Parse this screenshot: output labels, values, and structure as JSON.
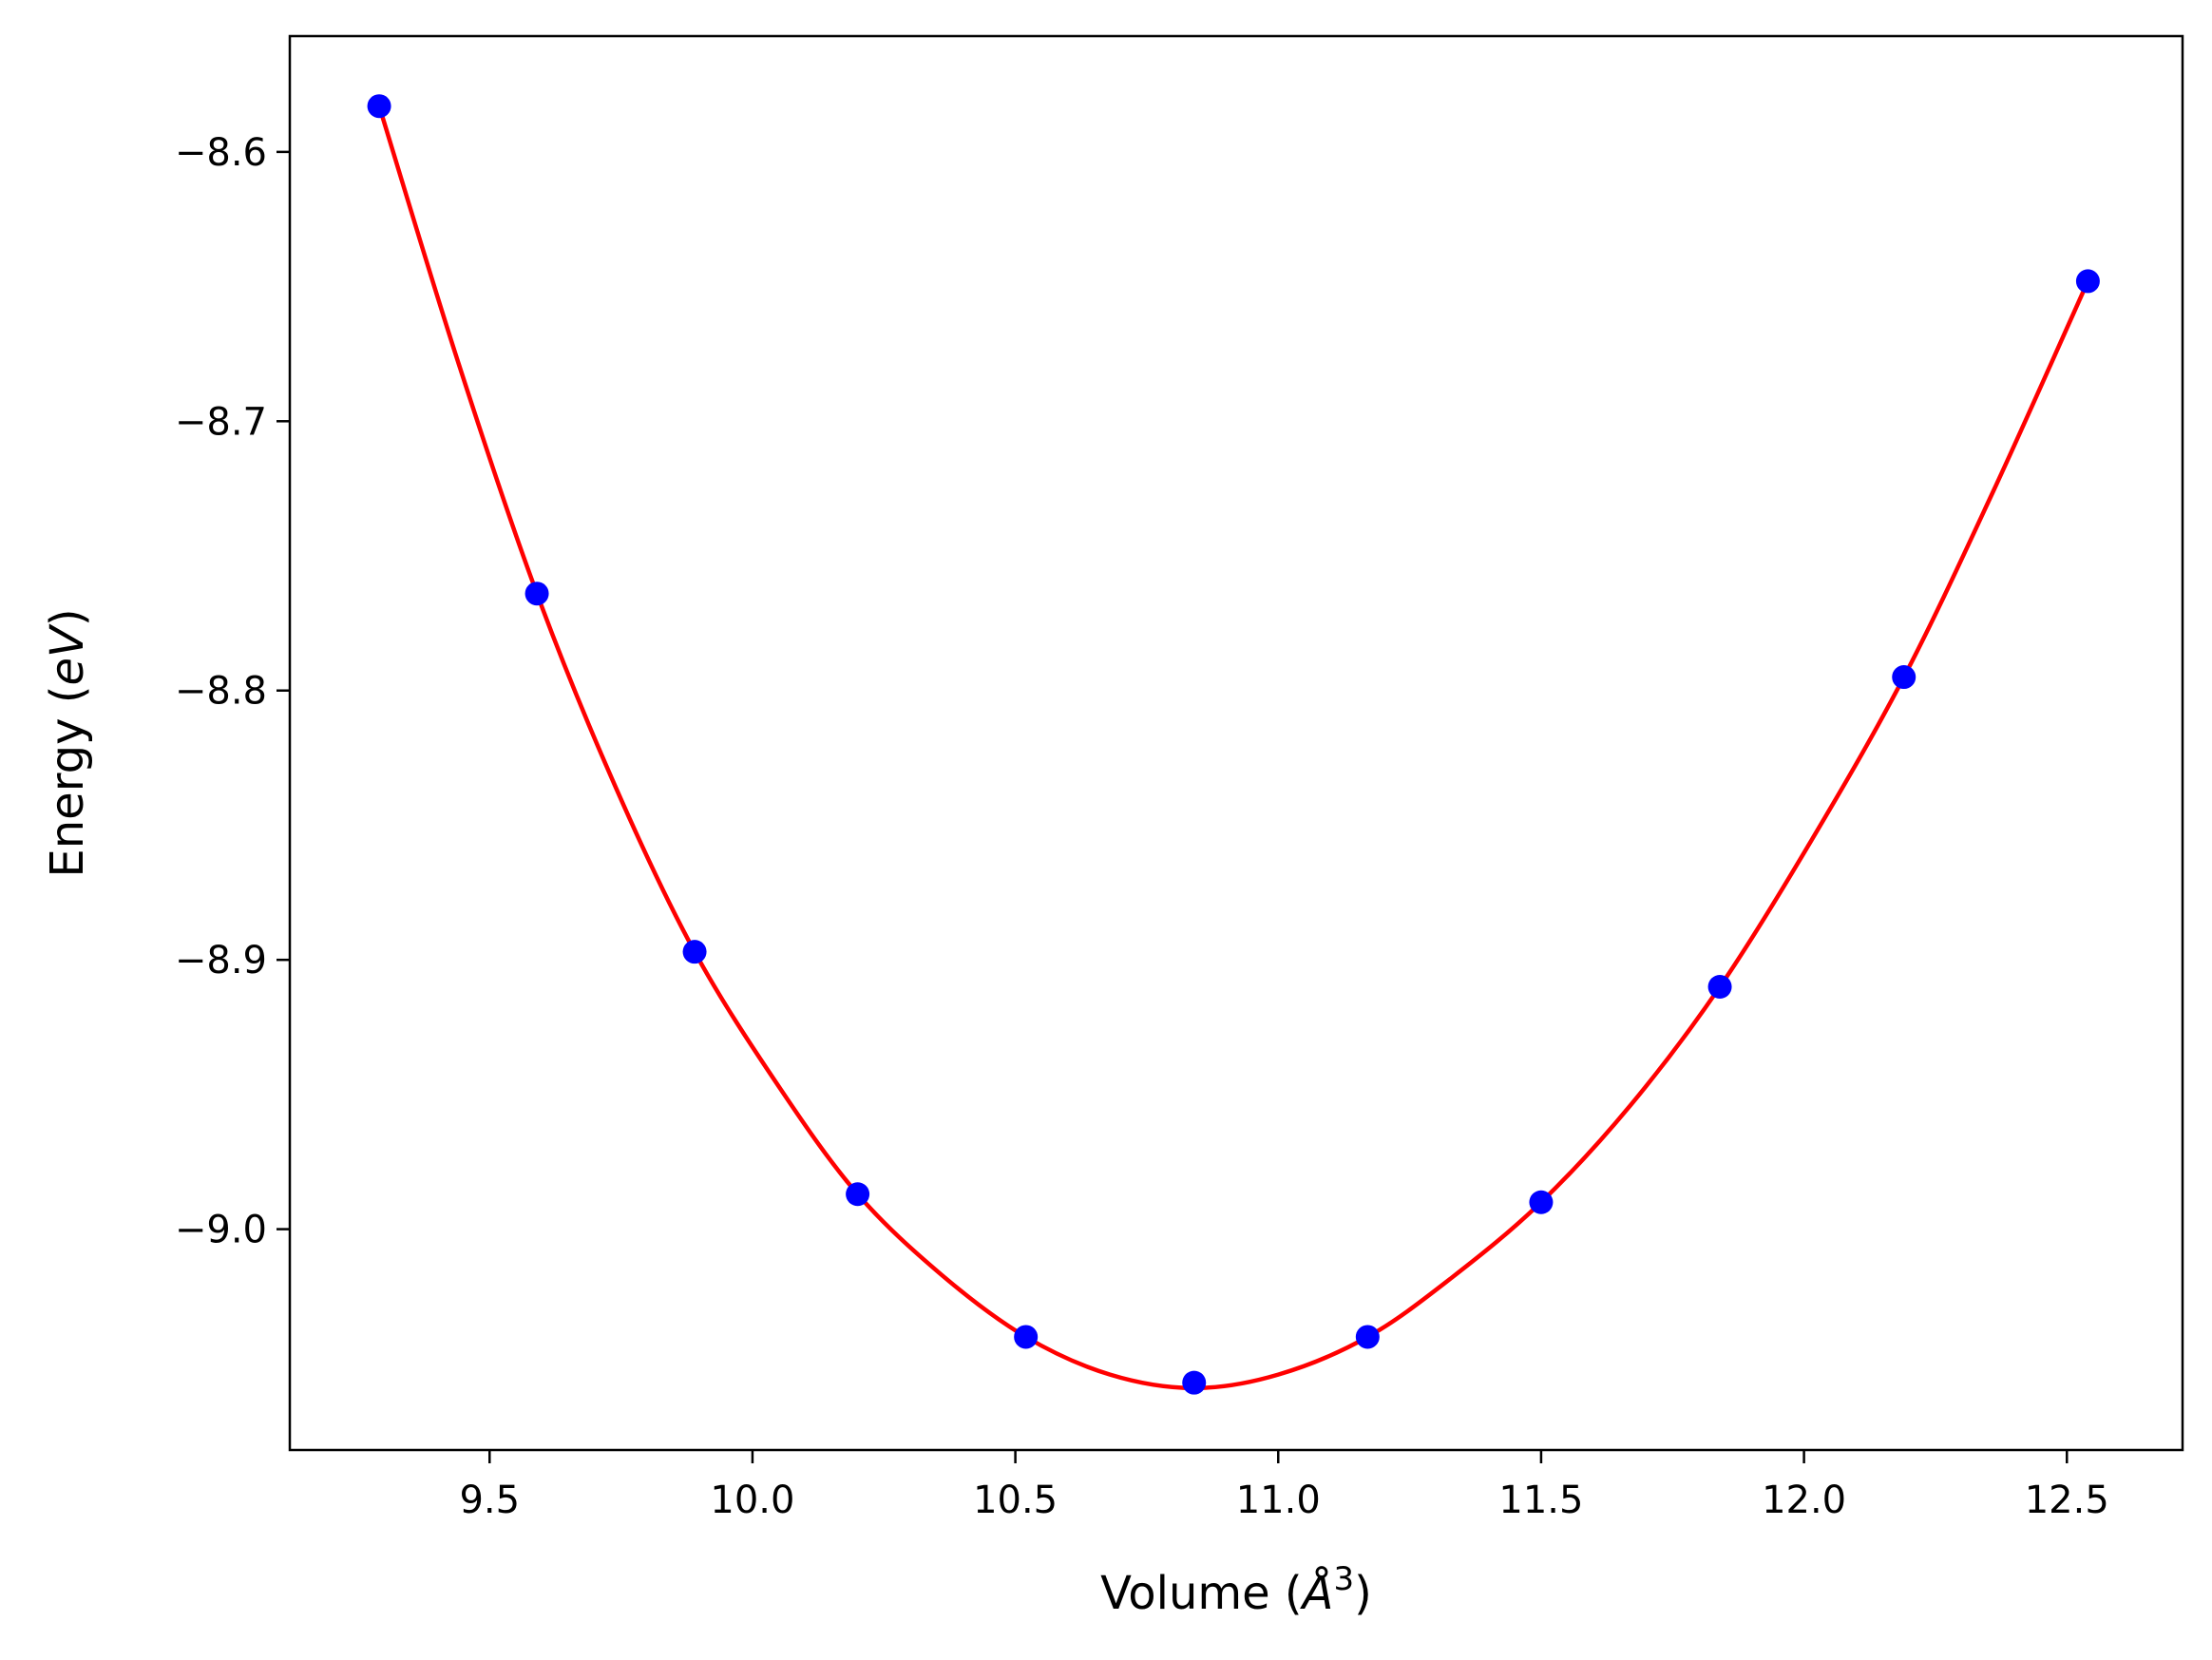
{
  "chart_data": {
    "type": "scatter",
    "title": "",
    "xlabel": "Volume (",
    "xlabel_italic": "Å",
    "xlabel_sup": "3",
    "xlabel_close": ")",
    "ylabel": "Energy (",
    "ylabel_italic": "eV",
    "ylabel_close": ")",
    "xlim": [
      9.12,
      12.72
    ],
    "ylim": [
      -9.082,
      -8.557
    ],
    "xticks": [
      9.5,
      10.0,
      10.5,
      11.0,
      11.5,
      12.0,
      12.5
    ],
    "xtick_labels": [
      "9.5",
      "10.0",
      "10.5",
      "11.0",
      "11.5",
      "12.0",
      "12.5"
    ],
    "yticks": [
      -8.6,
      -8.7,
      -8.8,
      -8.9,
      -9.0
    ],
    "ytick_labels": [
      "−8.6",
      "−8.7",
      "−8.8",
      "−8.9",
      "−9.0"
    ],
    "grid": false,
    "legend": "none",
    "series": [
      {
        "kind": "points",
        "color": "#0000ff",
        "x": [
          9.29,
          9.59,
          9.89,
          10.2,
          10.52,
          10.84,
          11.17,
          11.5,
          11.84,
          12.19,
          12.54
        ],
        "y": [
          -8.583,
          -8.764,
          -8.897,
          -8.987,
          -9.04,
          -9.057,
          -9.04,
          -8.99,
          -8.91,
          -8.795,
          -8.648
        ]
      },
      {
        "kind": "fit-line",
        "color": "#ff0000",
        "x": [
          9.29,
          9.44,
          9.59,
          9.74,
          9.89,
          10.05,
          10.2,
          10.36,
          10.52,
          10.68,
          10.84,
          11.0,
          11.17,
          11.33,
          11.5,
          11.67,
          11.84,
          12.01,
          12.19,
          12.36,
          12.54
        ],
        "y": [
          -8.583,
          -8.678,
          -8.764,
          -8.836,
          -8.897,
          -8.947,
          -8.987,
          -9.017,
          -9.04,
          -9.054,
          -9.059,
          -9.054,
          -9.04,
          -9.018,
          -8.99,
          -8.954,
          -8.91,
          -8.857,
          -8.795,
          -8.726,
          -8.648
        ]
      }
    ]
  }
}
